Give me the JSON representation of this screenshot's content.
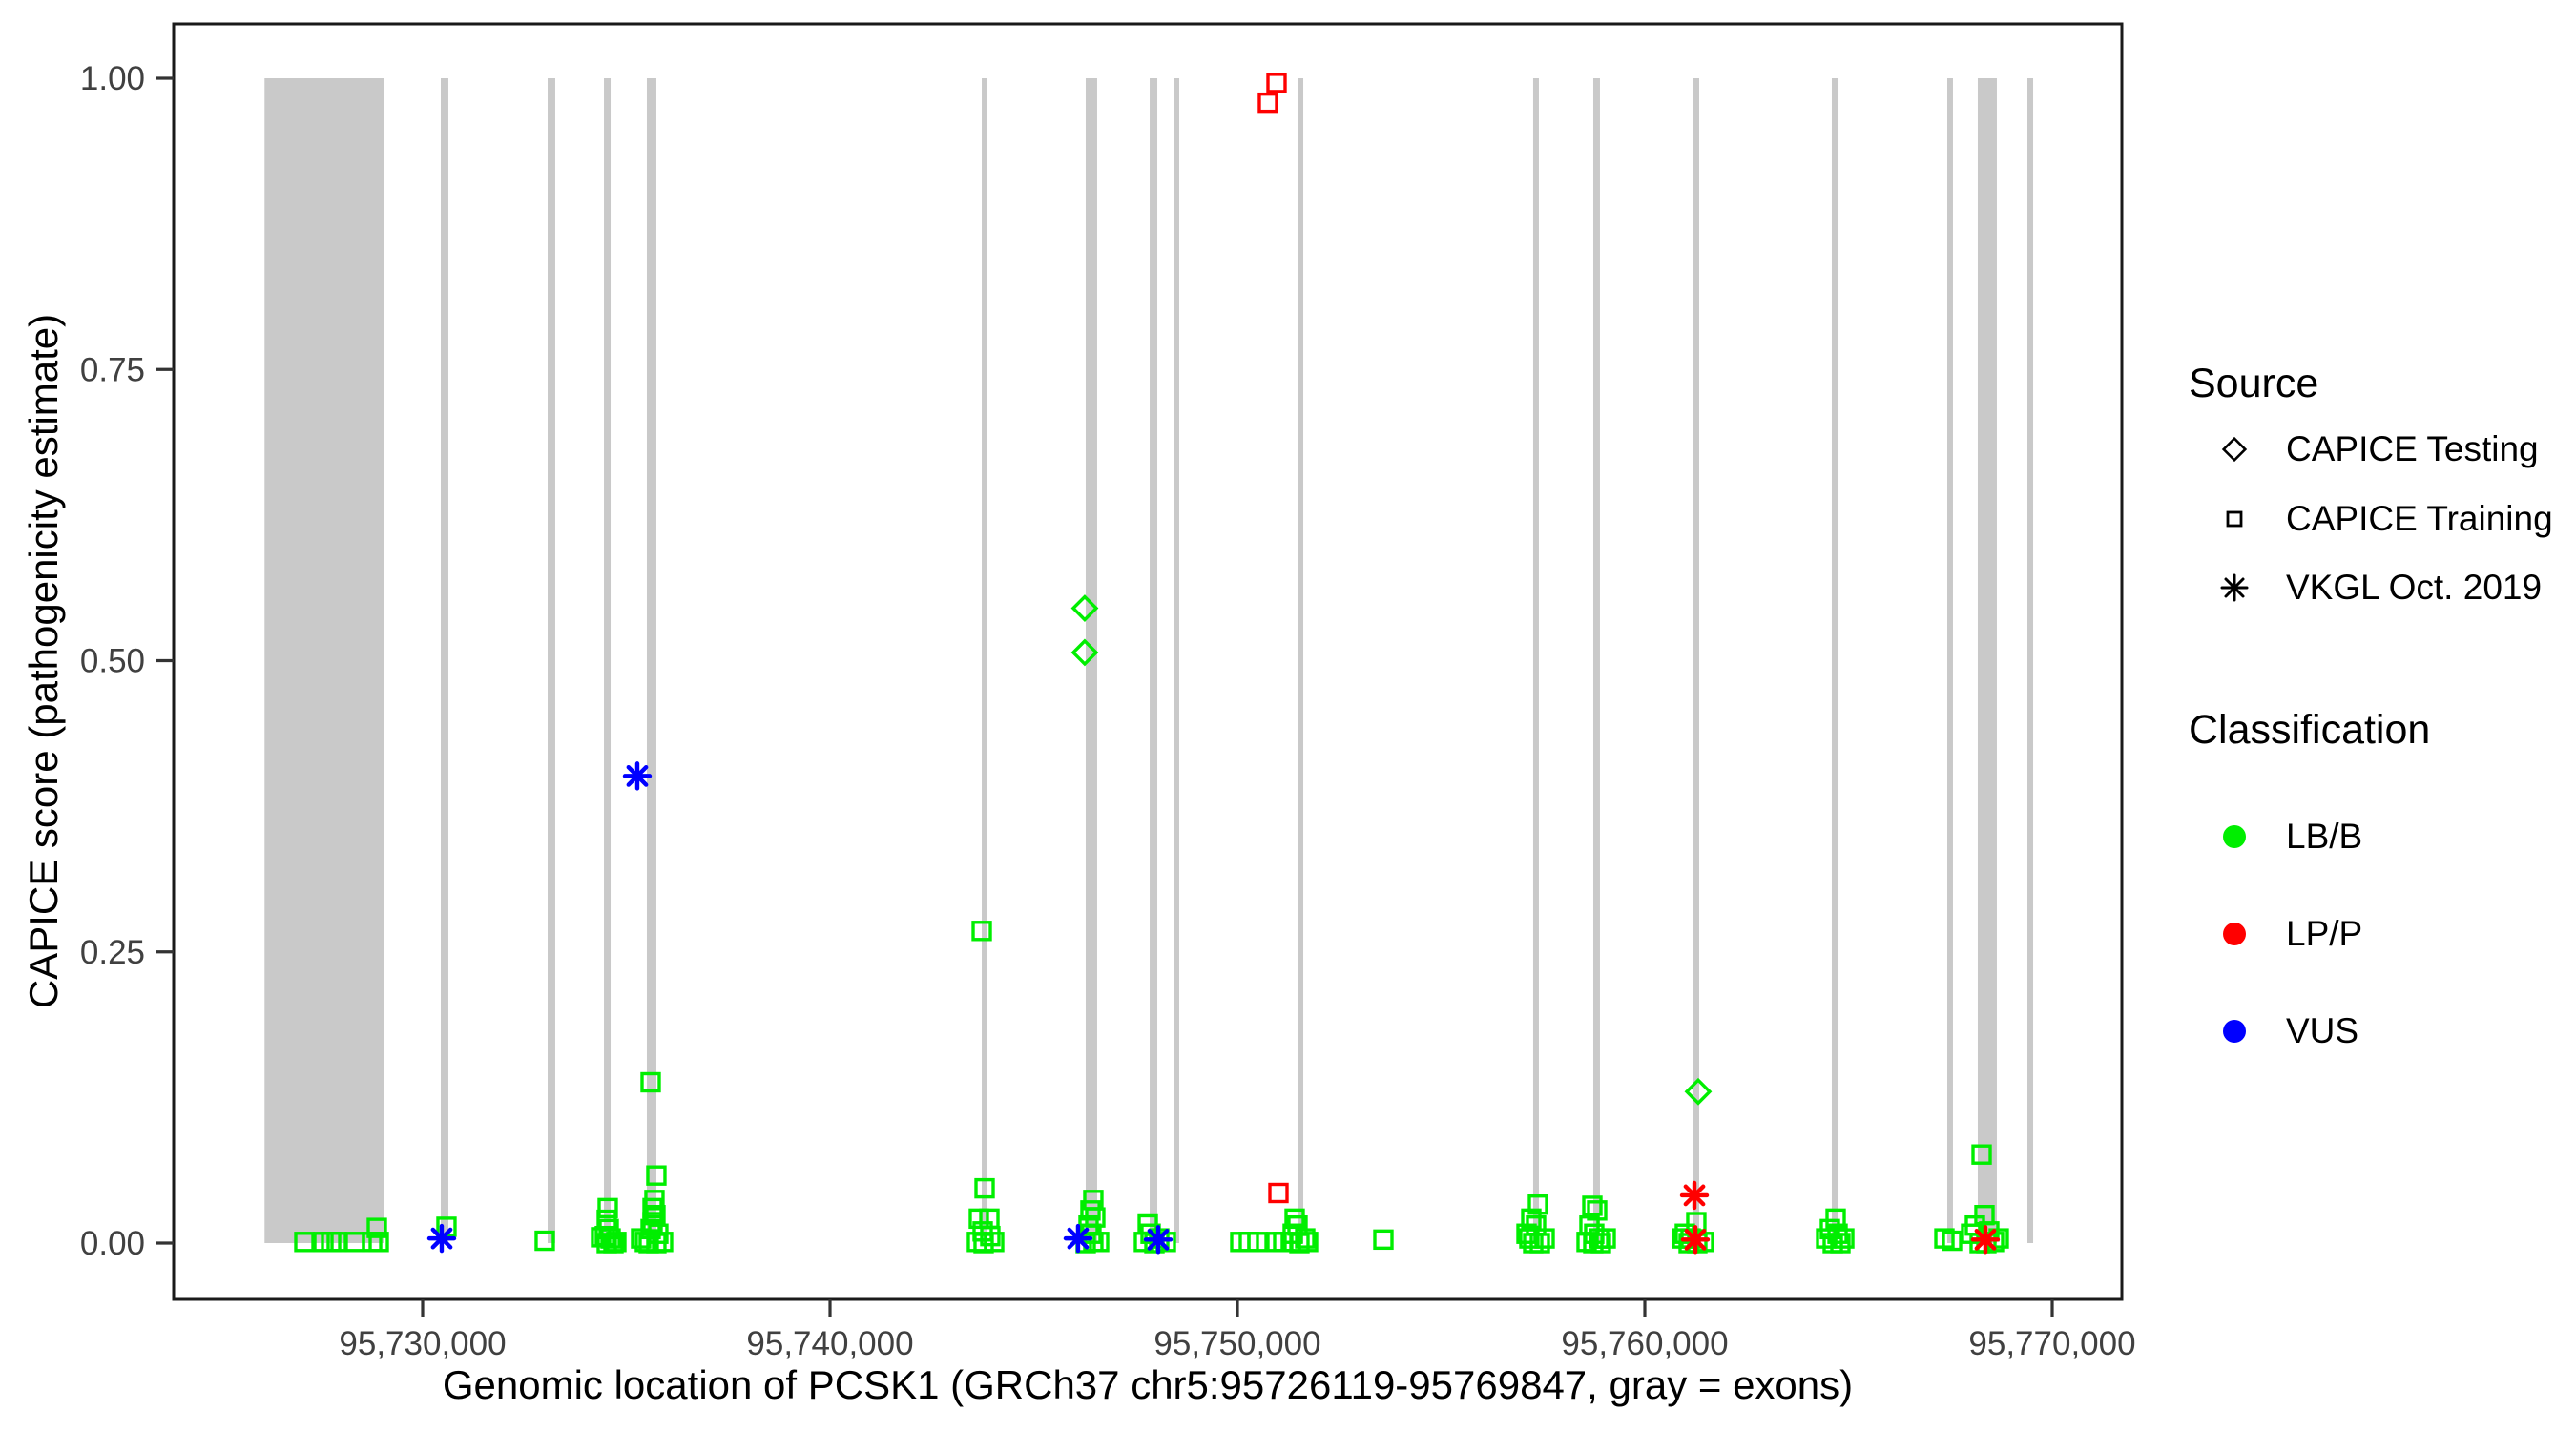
{
  "figure": {
    "background": "#FFFFFF",
    "panel_border_color": "#1a1a1a",
    "tick_color": "#333333",
    "tick_label_color": "#404040",
    "exon_color": "#C9C9C9"
  },
  "axes": {
    "x": {
      "title": "Genomic location of PCSK1 (GRCh37 chr5:95726119-95769847, gray = exons)",
      "ticks": [
        {
          "pos": 95730000,
          "label": "95,730,000"
        },
        {
          "pos": 95740000,
          "label": "95,740,000"
        },
        {
          "pos": 95750000,
          "label": "95,750,000"
        },
        {
          "pos": 95760000,
          "label": "95,760,000"
        },
        {
          "pos": 95770000,
          "label": "95,770,000"
        }
      ]
    },
    "y": {
      "title": "CAPICE score (pathogenicity estimate)",
      "ticks": [
        {
          "value": 0.0,
          "label": "0.00"
        },
        {
          "value": 0.25,
          "label": "0.25"
        },
        {
          "value": 0.5,
          "label": "0.50"
        },
        {
          "value": 0.75,
          "label": "0.75"
        },
        {
          "value": 1.0,
          "label": "1.00"
        }
      ]
    }
  },
  "legend": {
    "source": {
      "title": "Source",
      "items": [
        {
          "label": "CAPICE Testing",
          "symbol": "diamond"
        },
        {
          "label": "CAPICE Training",
          "symbol": "square"
        },
        {
          "label": "VKGL Oct. 2019",
          "symbol": "asterisk"
        }
      ]
    },
    "classification": {
      "title": "Classification",
      "items": [
        {
          "label": "LB/B",
          "color": "#00EE00"
        },
        {
          "label": "LP/P",
          "color": "#FF0000"
        },
        {
          "label": "VUS",
          "color": "#0000FF"
        }
      ]
    }
  },
  "chart_data": {
    "type": "scatter",
    "title": "",
    "xlabel": "Genomic location of PCSK1 (GRCh37 chr5:95726119-95769847, gray = exons)",
    "ylabel": "CAPICE score (pathogenicity estimate)",
    "x_domain": [
      95723890,
      95771760
    ],
    "y_domain": [
      0,
      1
    ],
    "gene_region": [
      95726119,
      95769847
    ],
    "exons": [
      [
        95726119,
        95729040
      ],
      [
        95730445,
        95730632
      ],
      [
        95733068,
        95733255
      ],
      [
        95734450,
        95734614
      ],
      [
        95735503,
        95735737
      ],
      [
        95743724,
        95743864
      ],
      [
        95746276,
        95746557
      ],
      [
        95747846,
        95748033
      ],
      [
        95748431,
        95748572
      ],
      [
        95751499,
        95751616
      ],
      [
        95757259,
        95757400
      ],
      [
        95758735,
        95758899
      ],
      [
        95761171,
        95761335
      ],
      [
        95764590,
        95764731
      ],
      [
        95767424,
        95767564
      ],
      [
        95768173,
        95768641
      ],
      [
        95769391,
        95769532
      ]
    ],
    "points": [
      {
        "pos": 95727096,
        "score": 0.001,
        "source": "training",
        "class": "LB/B"
      },
      {
        "pos": 95727565,
        "score": 0.001,
        "source": "training",
        "class": "LB/B"
      },
      {
        "pos": 95727752,
        "score": 0.001,
        "source": "training",
        "class": "LB/B"
      },
      {
        "pos": 95727892,
        "score": 0.001,
        "source": "training",
        "class": "LB/B"
      },
      {
        "pos": 95728337,
        "score": 0.001,
        "source": "training",
        "class": "LB/B"
      },
      {
        "pos": 95728759,
        "score": 0.001,
        "source": "training",
        "class": "LB/B"
      },
      {
        "pos": 95728923,
        "score": 0.001,
        "source": "training",
        "class": "LB/B"
      },
      {
        "pos": 95728876,
        "score": 0.013,
        "source": "training",
        "class": "LB/B"
      },
      {
        "pos": 95730585,
        "score": 0.014,
        "source": "training",
        "class": "LB/B"
      },
      {
        "pos": 95730468,
        "score": 0.004,
        "source": "vkgl",
        "class": "VUS"
      },
      {
        "pos": 95732997,
        "score": 0.002,
        "source": "training",
        "class": "LB/B"
      },
      {
        "pos": 95734379,
        "score": 0.005,
        "source": "training",
        "class": "LB/B"
      },
      {
        "pos": 95734473,
        "score": 0.006,
        "source": "training",
        "class": "LB/B"
      },
      {
        "pos": 95734520,
        "score": 0.02,
        "source": "training",
        "class": "LB/B"
      },
      {
        "pos": 95734543,
        "score": 0.03,
        "source": "training",
        "class": "LB/B"
      },
      {
        "pos": 95734567,
        "score": 0.012,
        "source": "training",
        "class": "LB/B"
      },
      {
        "pos": 95734614,
        "score": 0.004,
        "source": "training",
        "class": "LB/B"
      },
      {
        "pos": 95734520,
        "score": 0.0,
        "source": "training",
        "class": "LB/B"
      },
      {
        "pos": 95734684,
        "score": 0.0,
        "source": "training",
        "class": "LB/B"
      },
      {
        "pos": 95734754,
        "score": 0.001,
        "source": "training",
        "class": "LB/B"
      },
      {
        "pos": 95735269,
        "score": 0.401,
        "source": "vkgl",
        "class": "VUS"
      },
      {
        "pos": 95735597,
        "score": 0.138,
        "source": "training",
        "class": "LB/B"
      },
      {
        "pos": 95735737,
        "score": 0.058,
        "source": "training",
        "class": "LB/B"
      },
      {
        "pos": 95735690,
        "score": 0.037,
        "source": "training",
        "class": "LB/B"
      },
      {
        "pos": 95735644,
        "score": 0.03,
        "source": "training",
        "class": "LB/B"
      },
      {
        "pos": 95735714,
        "score": 0.024,
        "source": "training",
        "class": "LB/B"
      },
      {
        "pos": 95735644,
        "score": 0.018,
        "source": "training",
        "class": "LB/B"
      },
      {
        "pos": 95735597,
        "score": 0.012,
        "source": "training",
        "class": "LB/B"
      },
      {
        "pos": 95735784,
        "score": 0.008,
        "source": "training",
        "class": "LB/B"
      },
      {
        "pos": 95735362,
        "score": 0.004,
        "source": "training",
        "class": "LB/B"
      },
      {
        "pos": 95735456,
        "score": 0.001,
        "source": "training",
        "class": "LB/B"
      },
      {
        "pos": 95735550,
        "score": 0.0,
        "source": "training",
        "class": "LB/B"
      },
      {
        "pos": 95735737,
        "score": 0.0,
        "source": "training",
        "class": "LB/B"
      },
      {
        "pos": 95735901,
        "score": 0.001,
        "source": "training",
        "class": "LB/B"
      },
      {
        "pos": 95743724,
        "score": 0.268,
        "source": "training",
        "class": "LB/B"
      },
      {
        "pos": 95743794,
        "score": 0.047,
        "source": "training",
        "class": "LB/B"
      },
      {
        "pos": 95743653,
        "score": 0.021,
        "source": "training",
        "class": "LB/B"
      },
      {
        "pos": 95743911,
        "score": 0.021,
        "source": "training",
        "class": "LB/B"
      },
      {
        "pos": 95743747,
        "score": 0.01,
        "source": "training",
        "class": "LB/B"
      },
      {
        "pos": 95743606,
        "score": 0.001,
        "source": "training",
        "class": "LB/B"
      },
      {
        "pos": 95743770,
        "score": 0.0,
        "source": "training",
        "class": "LB/B"
      },
      {
        "pos": 95743934,
        "score": 0.006,
        "source": "training",
        "class": "LB/B"
      },
      {
        "pos": 95744028,
        "score": 0.001,
        "source": "training",
        "class": "LB/B"
      },
      {
        "pos": 95746252,
        "score": 0.545,
        "source": "testing",
        "class": "LB/B"
      },
      {
        "pos": 95746252,
        "score": 0.507,
        "source": "testing",
        "class": "LB/B"
      },
      {
        "pos": 95746463,
        "score": 0.037,
        "source": "training",
        "class": "LB/B"
      },
      {
        "pos": 95746393,
        "score": 0.028,
        "source": "training",
        "class": "LB/B"
      },
      {
        "pos": 95746510,
        "score": 0.022,
        "source": "training",
        "class": "LB/B"
      },
      {
        "pos": 95746346,
        "score": 0.015,
        "source": "training",
        "class": "LB/B"
      },
      {
        "pos": 95746416,
        "score": 0.008,
        "source": "training",
        "class": "LB/B"
      },
      {
        "pos": 95746276,
        "score": 0.0,
        "source": "training",
        "class": "LB/B"
      },
      {
        "pos": 95746463,
        "score": 0.001,
        "source": "training",
        "class": "LB/B"
      },
      {
        "pos": 95746604,
        "score": 0.001,
        "source": "training",
        "class": "LB/B"
      },
      {
        "pos": 95746088,
        "score": 0.004,
        "source": "vkgl",
        "class": "VUS"
      },
      {
        "pos": 95747799,
        "score": 0.016,
        "source": "training",
        "class": "LB/B"
      },
      {
        "pos": 95747869,
        "score": 0.008,
        "source": "training",
        "class": "LB/B"
      },
      {
        "pos": 95747705,
        "score": 0.001,
        "source": "training",
        "class": "LB/B"
      },
      {
        "pos": 95747963,
        "score": 0.0,
        "source": "training",
        "class": "LB/B"
      },
      {
        "pos": 95748080,
        "score": 0.004,
        "source": "training",
        "class": "LB/B"
      },
      {
        "pos": 95748244,
        "score": 0.001,
        "source": "training",
        "class": "LB/B"
      },
      {
        "pos": 95748056,
        "score": 0.003,
        "source": "vkgl",
        "class": "VUS"
      },
      {
        "pos": 95750070,
        "score": 0.001,
        "source": "training",
        "class": "LB/B"
      },
      {
        "pos": 95750281,
        "score": 0.001,
        "source": "training",
        "class": "LB/B"
      },
      {
        "pos": 95750492,
        "score": 0.001,
        "source": "training",
        "class": "LB/B"
      },
      {
        "pos": 95750960,
        "score": 0.001,
        "source": "training",
        "class": "LB/B"
      },
      {
        "pos": 95751124,
        "score": 0.001,
        "source": "training",
        "class": "LB/B"
      },
      {
        "pos": 95750749,
        "score": 0.979,
        "source": "training",
        "class": "LP/P"
      },
      {
        "pos": 95750960,
        "score": 0.996,
        "source": "training",
        "class": "LP/P"
      },
      {
        "pos": 95751007,
        "score": 0.043,
        "source": "training",
        "class": "LP/P"
      },
      {
        "pos": 95751405,
        "score": 0.021,
        "source": "training",
        "class": "LB/B"
      },
      {
        "pos": 95751475,
        "score": 0.015,
        "source": "training",
        "class": "LB/B"
      },
      {
        "pos": 95751358,
        "score": 0.008,
        "source": "training",
        "class": "LB/B"
      },
      {
        "pos": 95751311,
        "score": 0.001,
        "source": "training",
        "class": "LB/B"
      },
      {
        "pos": 95751522,
        "score": 0.0,
        "source": "training",
        "class": "LB/B"
      },
      {
        "pos": 95751663,
        "score": 0.004,
        "source": "training",
        "class": "LB/B"
      },
      {
        "pos": 95751733,
        "score": 0.001,
        "source": "training",
        "class": "LB/B"
      },
      {
        "pos": 95753583,
        "score": 0.003,
        "source": "training",
        "class": "LB/B"
      },
      {
        "pos": 95757377,
        "score": 0.033,
        "source": "training",
        "class": "LB/B"
      },
      {
        "pos": 95757213,
        "score": 0.021,
        "source": "training",
        "class": "LB/B"
      },
      {
        "pos": 95757330,
        "score": 0.015,
        "source": "training",
        "class": "LB/B"
      },
      {
        "pos": 95757096,
        "score": 0.008,
        "source": "training",
        "class": "LB/B"
      },
      {
        "pos": 95757260,
        "score": 0.0,
        "source": "training",
        "class": "LB/B"
      },
      {
        "pos": 95757424,
        "score": 0.0,
        "source": "training",
        "class": "LB/B"
      },
      {
        "pos": 95757541,
        "score": 0.004,
        "source": "training",
        "class": "LB/B"
      },
      {
        "pos": 95757166,
        "score": 0.004,
        "source": "training",
        "class": "LB/B"
      },
      {
        "pos": 95758712,
        "score": 0.032,
        "source": "training",
        "class": "LB/B"
      },
      {
        "pos": 95758829,
        "score": 0.028,
        "source": "training",
        "class": "LB/B"
      },
      {
        "pos": 95758641,
        "score": 0.015,
        "source": "training",
        "class": "LB/B"
      },
      {
        "pos": 95758758,
        "score": 0.008,
        "source": "training",
        "class": "LB/B"
      },
      {
        "pos": 95758876,
        "score": 0.004,
        "source": "training",
        "class": "LB/B"
      },
      {
        "pos": 95758571,
        "score": 0.001,
        "source": "training",
        "class": "LB/B"
      },
      {
        "pos": 95758735,
        "score": 0.0,
        "source": "training",
        "class": "LB/B"
      },
      {
        "pos": 95758922,
        "score": 0.0,
        "source": "training",
        "class": "LB/B"
      },
      {
        "pos": 95759040,
        "score": 0.004,
        "source": "training",
        "class": "LB/B"
      },
      {
        "pos": 95761311,
        "score": 0.13,
        "source": "testing",
        "class": "LB/B"
      },
      {
        "pos": 95761218,
        "score": 0.041,
        "source": "vkgl",
        "class": "LP/P"
      },
      {
        "pos": 95761264,
        "score": 0.018,
        "source": "training",
        "class": "LB/B"
      },
      {
        "pos": 95760983,
        "score": 0.008,
        "source": "training",
        "class": "LB/B"
      },
      {
        "pos": 95761124,
        "score": 0.004,
        "source": "training",
        "class": "LB/B"
      },
      {
        "pos": 95760913,
        "score": 0.004,
        "source": "training",
        "class": "LB/B"
      },
      {
        "pos": 95761077,
        "score": 0.0,
        "source": "training",
        "class": "LB/B"
      },
      {
        "pos": 95761288,
        "score": 0.0,
        "source": "training",
        "class": "LB/B"
      },
      {
        "pos": 95761452,
        "score": 0.001,
        "source": "training",
        "class": "LB/B"
      },
      {
        "pos": 95761241,
        "score": 0.003,
        "source": "vkgl",
        "class": "LP/P"
      },
      {
        "pos": 95764684,
        "score": 0.021,
        "source": "training",
        "class": "LB/B"
      },
      {
        "pos": 95764543,
        "score": 0.012,
        "source": "training",
        "class": "LB/B"
      },
      {
        "pos": 95764731,
        "score": 0.008,
        "source": "training",
        "class": "LB/B"
      },
      {
        "pos": 95764450,
        "score": 0.004,
        "source": "training",
        "class": "LB/B"
      },
      {
        "pos": 95764614,
        "score": 0.0,
        "source": "training",
        "class": "LB/B"
      },
      {
        "pos": 95764801,
        "score": 0.0,
        "source": "training",
        "class": "LB/B"
      },
      {
        "pos": 95764895,
        "score": 0.004,
        "source": "training",
        "class": "LB/B"
      },
      {
        "pos": 95767541,
        "score": 0.002,
        "source": "training",
        "class": "LB/B"
      },
      {
        "pos": 95767354,
        "score": 0.004,
        "source": "training",
        "class": "LB/B"
      },
      {
        "pos": 95768267,
        "score": 0.076,
        "source": "training",
        "class": "LB/B"
      },
      {
        "pos": 95768337,
        "score": 0.024,
        "source": "training",
        "class": "LB/B"
      },
      {
        "pos": 95768103,
        "score": 0.015,
        "source": "training",
        "class": "LB/B"
      },
      {
        "pos": 95768454,
        "score": 0.01,
        "source": "training",
        "class": "LB/B"
      },
      {
        "pos": 95768009,
        "score": 0.008,
        "source": "training",
        "class": "LB/B"
      },
      {
        "pos": 95768220,
        "score": 0.0,
        "source": "training",
        "class": "LB/B"
      },
      {
        "pos": 95768384,
        "score": 0.0,
        "source": "training",
        "class": "LB/B"
      },
      {
        "pos": 95768571,
        "score": 0.001,
        "source": "training",
        "class": "LB/B"
      },
      {
        "pos": 95768688,
        "score": 0.004,
        "source": "training",
        "class": "LB/B"
      },
      {
        "pos": 95768360,
        "score": 0.003,
        "source": "vkgl",
        "class": "LP/P"
      }
    ]
  }
}
